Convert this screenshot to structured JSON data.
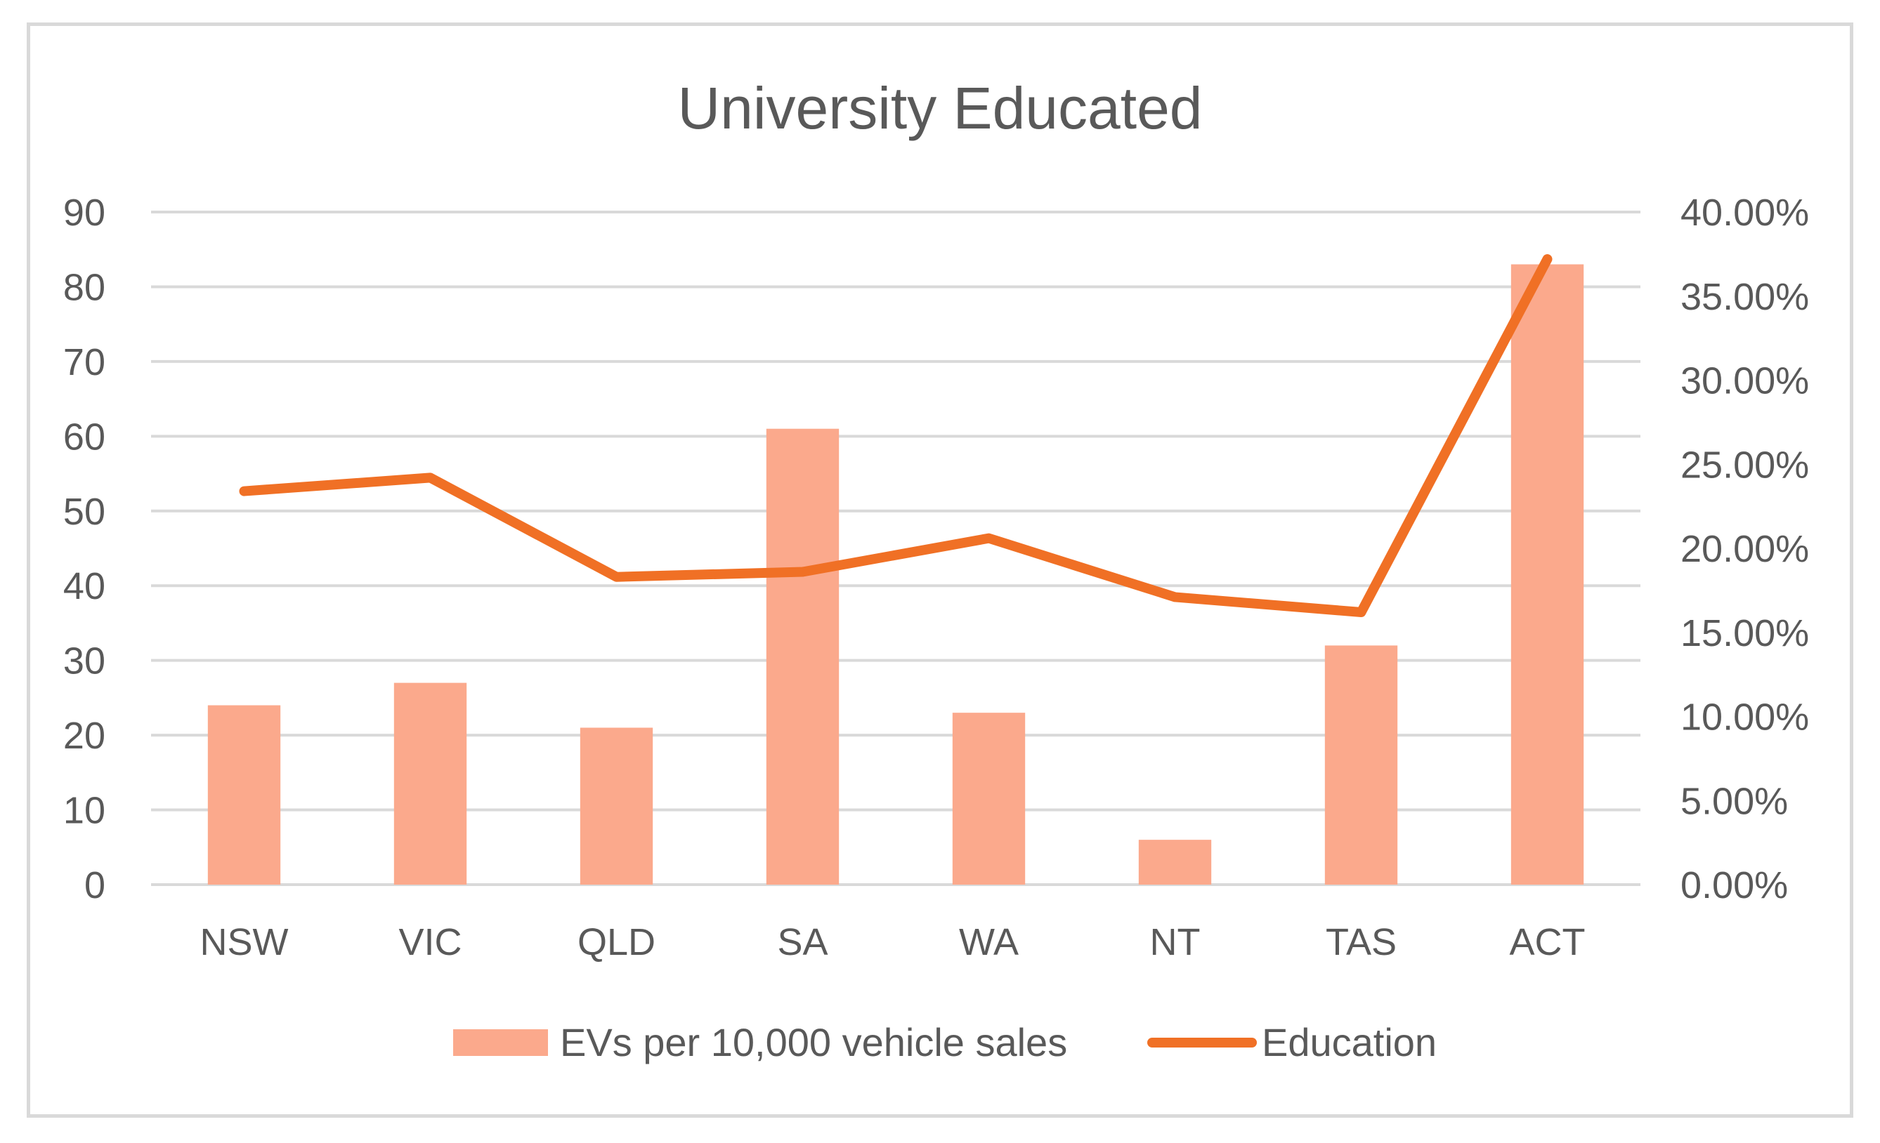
{
  "chart_data": {
    "type": "bar",
    "title": "University Educated",
    "categories": [
      "NSW",
      "VIC",
      "QLD",
      "SA",
      "WA",
      "NT",
      "TAS",
      "ACT"
    ],
    "series": [
      {
        "name": "EVs per 10,000 vehicle sales",
        "type": "bar",
        "axis": "left",
        "color": "#fba98c",
        "values": [
          24,
          27,
          21,
          61,
          23,
          6,
          32,
          83
        ]
      },
      {
        "name": "Education",
        "type": "line",
        "axis": "right",
        "color": "#f07025",
        "values": [
          0.234,
          0.242,
          0.183,
          0.186,
          0.206,
          0.171,
          0.162,
          0.372
        ]
      }
    ],
    "left_axis": {
      "ylim": [
        0,
        90
      ],
      "ticks": [
        "0",
        "10",
        "20",
        "30",
        "40",
        "50",
        "60",
        "70",
        "80",
        "90"
      ]
    },
    "right_axis": {
      "ylim": [
        0,
        0.4
      ],
      "ticks": [
        "0.00%",
        "5.00%",
        "10.00%",
        "15.00%",
        "20.00%",
        "25.00%",
        "30.00%",
        "35.00%",
        "40.00%"
      ]
    },
    "grid": true,
    "legend_position": "bottom",
    "colors": {
      "grid": "#d9d9d9",
      "text": "#595959",
      "frame": "#d9d9d9"
    }
  }
}
